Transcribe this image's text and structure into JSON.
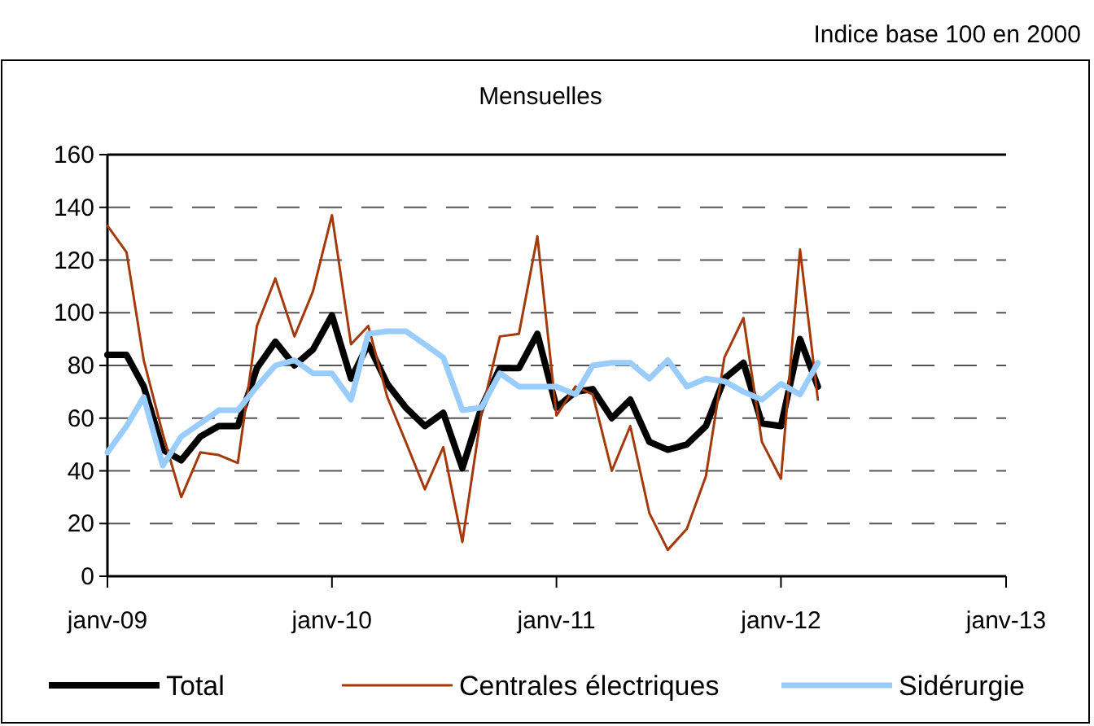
{
  "chart_data": {
    "type": "line",
    "title": "Mensuelles",
    "annotations": [
      "Indice base 100 en 2000"
    ],
    "x": [
      "2009-01",
      "2009-02",
      "2009-03",
      "2009-04",
      "2009-05",
      "2009-06",
      "2009-07",
      "2009-08",
      "2009-09",
      "2009-10",
      "2009-11",
      "2009-12",
      "2010-01",
      "2010-02",
      "2010-03",
      "2010-04",
      "2010-05",
      "2010-06",
      "2010-07",
      "2010-08",
      "2010-09",
      "2010-10",
      "2010-11",
      "2010-12",
      "2011-01",
      "2011-02",
      "2011-03",
      "2011-04",
      "2011-05",
      "2011-06",
      "2011-07",
      "2011-08",
      "2011-09",
      "2011-10",
      "2011-11",
      "2011-12",
      "2012-01",
      "2012-02",
      "2012-03"
    ],
    "series": [
      {
        "name": "Total",
        "color": "#000000",
        "values": [
          84,
          84,
          72,
          48,
          44,
          53,
          57,
          57,
          79,
          89,
          80,
          86,
          99,
          75,
          88,
          73,
          64,
          57,
          62,
          41,
          64,
          79,
          79,
          92,
          64,
          70,
          71,
          60,
          67,
          51,
          48,
          50,
          57,
          75,
          81,
          58,
          57,
          90,
          72
        ]
      },
      {
        "name": "Centrales électriques",
        "color": "#a33a0c",
        "values": [
          133,
          123,
          82,
          54,
          30,
          47,
          46,
          43,
          95,
          113,
          91,
          108,
          137,
          88,
          95,
          68,
          51,
          33,
          49,
          13,
          62,
          91,
          92,
          129,
          61,
          72,
          69,
          40,
          57,
          24,
          10,
          18,
          38,
          83,
          98,
          51,
          37,
          124,
          67
        ]
      },
      {
        "name": "Sidérurgie",
        "color": "#99ccff",
        "values": [
          47,
          57,
          68,
          42,
          53,
          58,
          63,
          63,
          72,
          80,
          82,
          77,
          77,
          67,
          92,
          93,
          93,
          88,
          83,
          63,
          64,
          77,
          72,
          72,
          72,
          69,
          80,
          81,
          81,
          75,
          82,
          72,
          75,
          74,
          70,
          67,
          73,
          69,
          81
        ]
      }
    ],
    "xlim": [
      "2009-01",
      "2013-01"
    ],
    "xticks": [
      {
        "value": "2009-01",
        "label": "janv-09"
      },
      {
        "value": "2010-01",
        "label": "janv-10"
      },
      {
        "value": "2011-01",
        "label": "janv-11"
      },
      {
        "value": "2012-01",
        "label": "janv-12"
      },
      {
        "value": "2013-01",
        "label": "janv-13"
      }
    ],
    "ylim": [
      0,
      160
    ],
    "yticks": [
      0,
      20,
      40,
      60,
      80,
      100,
      120,
      140,
      160
    ],
    "grid": "y",
    "legend": "bottom",
    "marker": "none",
    "line_style": "solid"
  }
}
